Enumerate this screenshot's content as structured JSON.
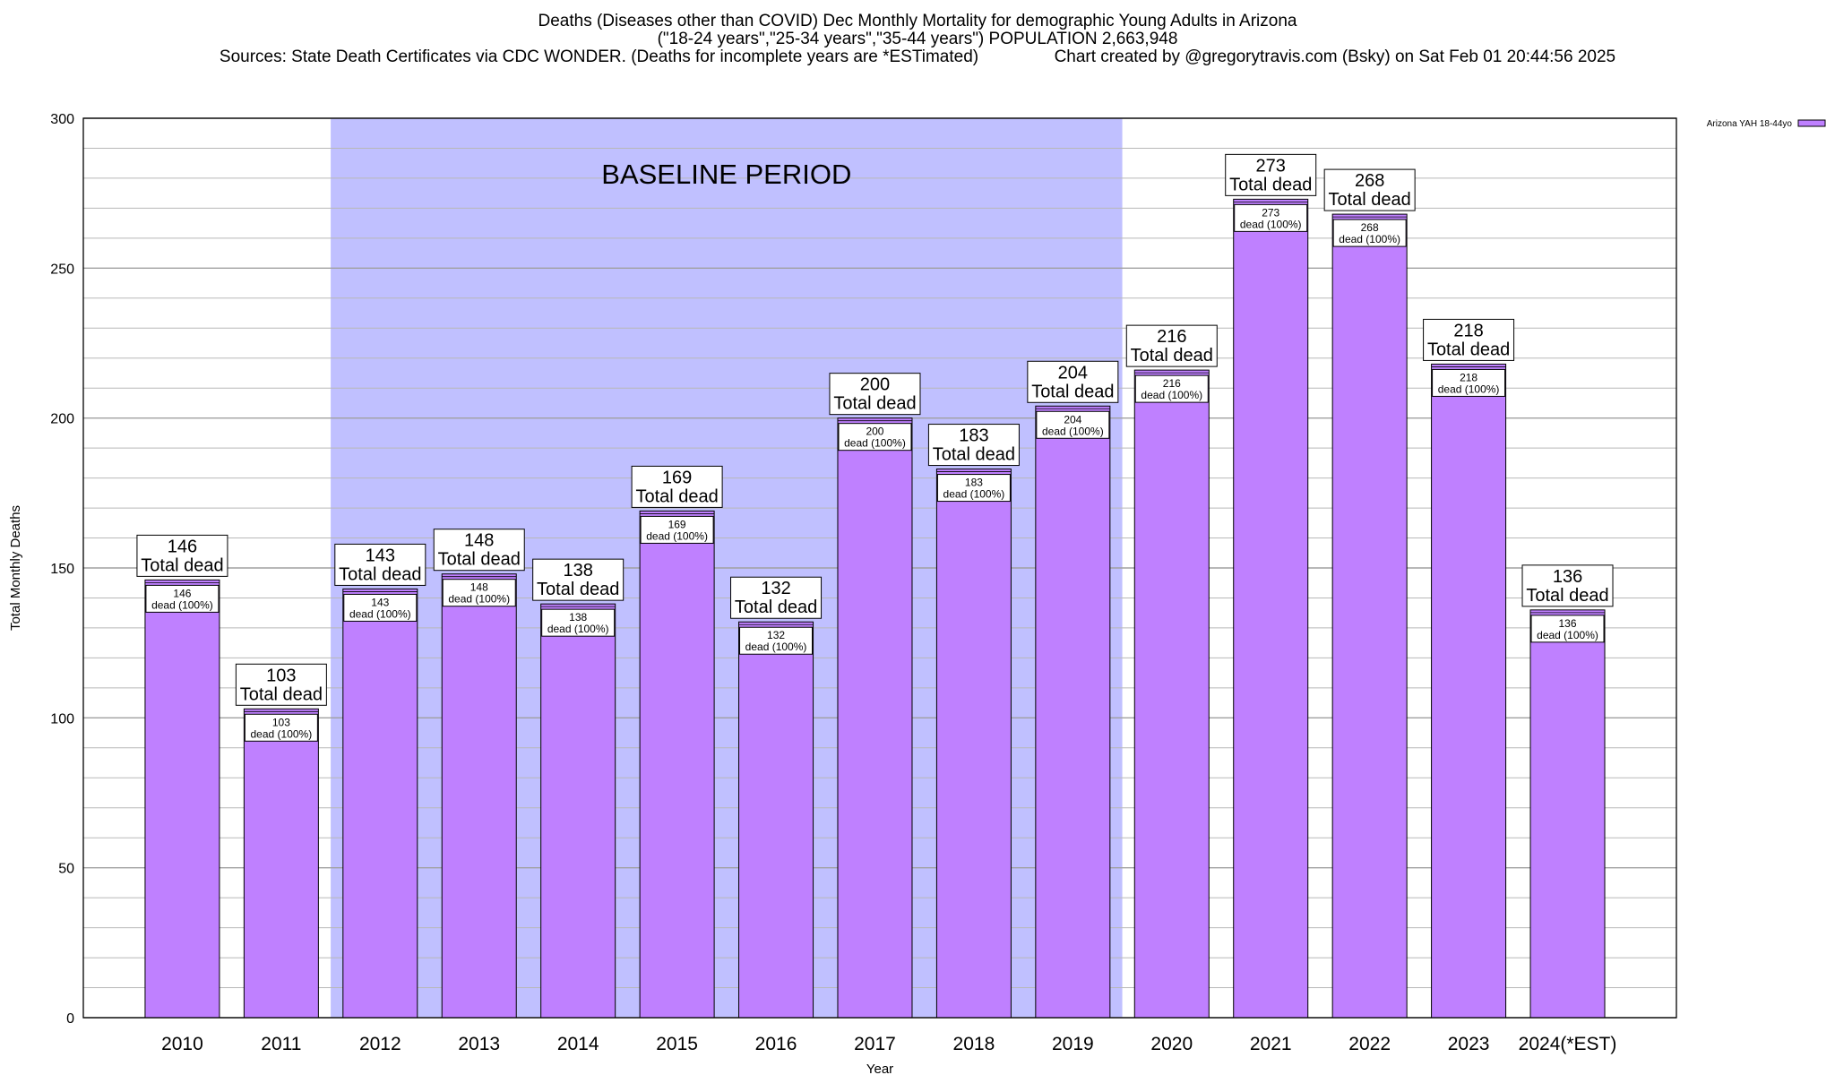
{
  "header": {
    "title_line1": "Deaths (Diseases other than COVID) Dec Monthly Mortality for demographic Young Adults in Arizona",
    "title_line2": "(\"18-24 years\",\"25-34 years\",\"35-44 years\") POPULATION 2,663,948",
    "sources": "Sources: State Death Certificates via CDC WONDER. (Deaths for incomplete years are *ESTimated)",
    "credit": "Chart created by @gregorytravis.com (Bsky) on Sat Feb 01 20:44:56 2025"
  },
  "chart_data": {
    "type": "bar",
    "xlabel": "Year",
    "ylabel": "Total Monthly Deaths",
    "ylim": [
      0,
      300
    ],
    "yticks": [
      0,
      50,
      100,
      150,
      200,
      250,
      300
    ],
    "grid": true,
    "legend": {
      "placement": "top-right",
      "label": "Arizona YAH 18-44yo"
    },
    "categories": [
      "2010",
      "2011",
      "2012",
      "2013",
      "2014",
      "2015",
      "2016",
      "2017",
      "2018",
      "2019",
      "2020",
      "2021",
      "2022",
      "2023",
      "2024(*EST)"
    ],
    "series": [
      {
        "name": "Arizona YAH 18-44yo",
        "values": [
          146,
          103,
          143,
          148,
          138,
          169,
          132,
          200,
          183,
          204,
          216,
          273,
          268,
          218,
          136
        ]
      }
    ],
    "label_top_suffix": "Total dead",
    "label_inner_suffix": "dead (100%)",
    "baseline": {
      "label": "BASELINE PERIOD",
      "from": "2012",
      "to": "2019"
    },
    "colors": {
      "bar": "#bf80ff",
      "baseline_band": "#c0c0ff",
      "grid": "#a0a0a0"
    }
  }
}
